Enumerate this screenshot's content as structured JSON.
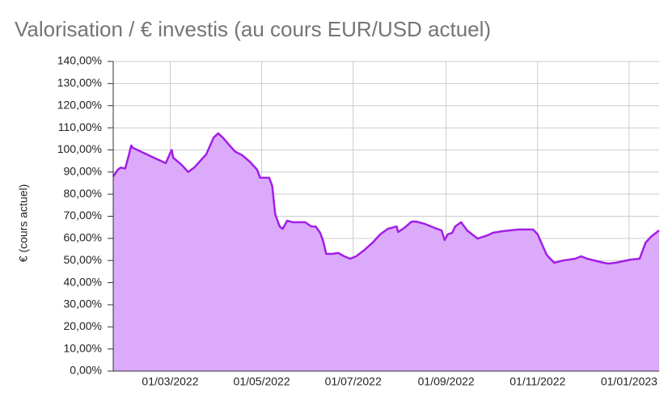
{
  "chart_data": {
    "type": "area",
    "title": "Valorisation / € investis (au cours EUR/USD actuel)",
    "y_label": "€ (cours actuel)",
    "x": [
      "22/01/2022",
      "25/01/2022",
      "27/01/2022",
      "30/01/2022",
      "01/02/2022",
      "03/02/2022",
      "04/02/2022",
      "07/02/2022",
      "18/02/2022",
      "26/02/2022",
      "02/03/2022",
      "03/03/2022",
      "09/03/2022",
      "13/03/2022",
      "17/03/2022",
      "25/03/2022",
      "30/03/2022",
      "02/04/2022",
      "05/04/2022",
      "13/04/2022",
      "18/04/2022",
      "23/04/2022",
      "28/04/2022",
      "30/04/2022",
      "05/05/2022",
      "06/05/2022",
      "08/05/2022",
      "10/05/2022",
      "13/05/2022",
      "15/05/2022",
      "18/05/2022",
      "22/05/2022",
      "30/05/2022",
      "03/06/2022",
      "06/06/2022",
      "09/06/2022",
      "11/06/2022",
      "13/06/2022",
      "17/06/2022",
      "21/06/2022",
      "25/06/2022",
      "29/06/2022",
      "03/07/2022",
      "08/07/2022",
      "14/07/2022",
      "19/07/2022",
      "24/07/2022",
      "30/07/2022",
      "31/07/2022",
      "04/08/2022",
      "09/08/2022",
      "12/08/2022",
      "18/08/2022",
      "26/08/2022",
      "29/08/2022",
      "31/08/2022",
      "02/09/2022",
      "05/09/2022",
      "07/09/2022",
      "11/09/2022",
      "15/09/2022",
      "22/09/2022",
      "27/09/2022",
      "30/09/2022",
      "02/10/2022",
      "08/10/2022",
      "19/10/2022",
      "29/10/2022",
      "01/11/2022",
      "07/11/2022",
      "12/11/2022",
      "18/11/2022",
      "26/11/2022",
      "30/11/2022",
      "04/12/2022",
      "15/12/2022",
      "18/12/2022",
      "23/12/2022",
      "02/01/2023",
      "08/01/2023",
      "12/01/2023",
      "16/01/2023",
      "21/01/2023"
    ],
    "values": [
      88,
      91,
      92,
      91.6,
      96.5,
      102,
      101,
      100,
      96.5,
      94,
      100,
      96.5,
      93,
      90,
      92,
      98,
      105.6,
      107.5,
      105.6,
      99.4,
      97.6,
      94.7,
      91,
      87.4,
      87.4,
      87.4,
      83.7,
      70.9,
      65.4,
      64.3,
      68,
      67.3,
      67.3,
      65.4,
      65.4,
      62.5,
      58.8,
      53,
      53,
      53.4,
      51.9,
      50.8,
      51.9,
      54.5,
      58.1,
      61.8,
      64.3,
      65.4,
      62.9,
      64.7,
      67.6,
      67.6,
      66.5,
      64.3,
      63.6,
      59.2,
      61.8,
      62.5,
      65.4,
      67.3,
      63.6,
      59.9,
      61,
      61.8,
      62.5,
      63.2,
      64,
      64,
      61.8,
      52.6,
      49,
      50,
      50.8,
      51.9,
      50.8,
      49,
      48.6,
      49,
      50.4,
      50.8,
      58.1,
      61,
      63.6
    ],
    "color": "#a21ee6",
    "fill_color": "#dcaafa",
    "xlim": [
      "22/01/2022",
      "21/01/2023"
    ],
    "xticks": [
      "01/03/2022",
      "01/05/2022",
      "01/07/2022",
      "01/09/2022",
      "01/11/2022",
      "01/01/2023"
    ],
    "ylim": [
      0,
      140
    ],
    "yticks": [
      {
        "value": 0,
        "label": "0,00%"
      },
      {
        "value": 10,
        "label": "10,00%"
      },
      {
        "value": 20,
        "label": "20,00%"
      },
      {
        "value": 30,
        "label": "30,00%"
      },
      {
        "value": 40,
        "label": "40,00%"
      },
      {
        "value": 50,
        "label": "50,00%"
      },
      {
        "value": 60,
        "label": "60,00%"
      },
      {
        "value": 70,
        "label": "70,00%"
      },
      {
        "value": 80,
        "label": "80,00%"
      },
      {
        "value": 90,
        "label": "90,00%"
      },
      {
        "value": 100,
        "label": "100,00%"
      },
      {
        "value": 110,
        "label": "110,00%"
      },
      {
        "value": 120,
        "label": "120,00%"
      },
      {
        "value": 130,
        "label": "130,00%"
      },
      {
        "value": 140,
        "label": "140,00%"
      }
    ],
    "grid": true
  }
}
